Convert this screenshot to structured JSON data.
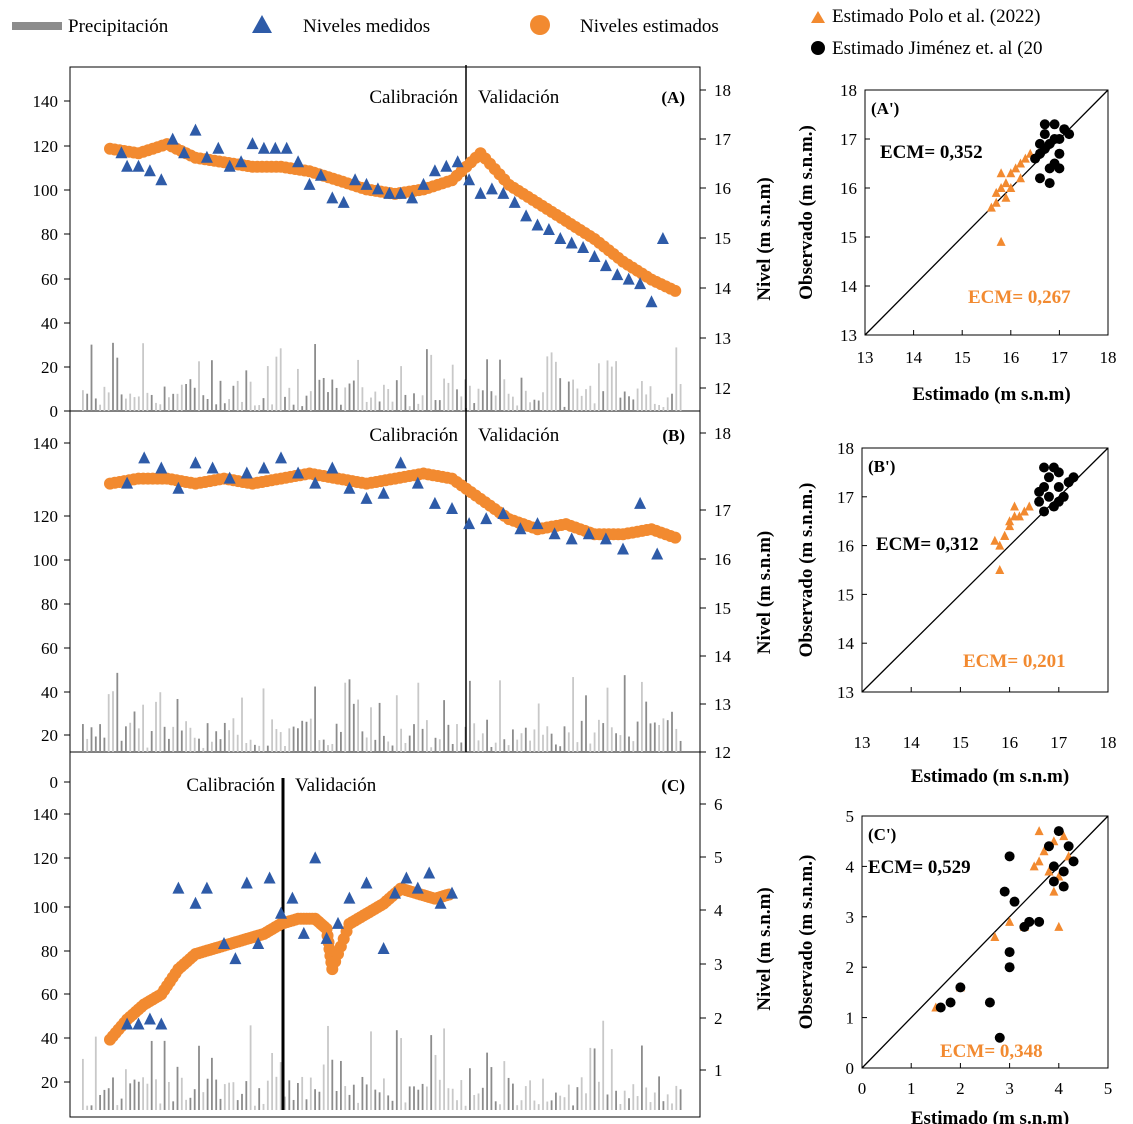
{
  "legend": {
    "items": [
      {
        "label": "Precipitación",
        "symbol": "bar",
        "color": "#8c8c8c"
      },
      {
        "label": "Niveles medidos",
        "symbol": "triangle",
        "color": "#2e5ba8"
      },
      {
        "label": "Niveles estimados",
        "symbol": "circle",
        "color": "#f28a30"
      },
      {
        "label": "Estimado Polo et al. (2022)",
        "symbol": "triangle",
        "color": "#f28a30"
      },
      {
        "label": "Estimado Jiménez et. al (20",
        "symbol": "circle",
        "color": "#000000"
      }
    ]
  },
  "colors": {
    "measured": "#2e5ba8",
    "estimated": "#f28a30",
    "polo": "#f28a30",
    "jimenez": "#000000",
    "precip": "#8c8c8c",
    "precip_light": "#c8c8c8"
  },
  "annotations": {
    "calibration": "Calibración",
    "validation": "Validación"
  },
  "chart_data": [
    {
      "type": "scatter",
      "panel": "(A)",
      "left_axis_ticks": [
        "0",
        "20",
        "40",
        "60",
        "80",
        "100",
        "120",
        "140"
      ],
      "right_axis_ticks": [
        "12",
        "13",
        "14",
        "15",
        "16",
        "17",
        "18"
      ],
      "right_axis_label": "Nivel (m s.n.m)",
      "right_ylim": [
        11.7,
        18.3
      ],
      "left_ylim": [
        0,
        150
      ],
      "series": [
        {
          "name": "Niveles medidos",
          "x": [
            0.02,
            0.03,
            0.05,
            0.07,
            0.09,
            0.11,
            0.13,
            0.15,
            0.17,
            0.19,
            0.21,
            0.23,
            0.25,
            0.27,
            0.29,
            0.31,
            0.33,
            0.35,
            0.37,
            0.39,
            0.41,
            0.43,
            0.45,
            0.47,
            0.49,
            0.51,
            0.53,
            0.55,
            0.57,
            0.59,
            0.61,
            0.63,
            0.65,
            0.67,
            0.69,
            0.71,
            0.73,
            0.75,
            0.77,
            0.79,
            0.81,
            0.83,
            0.85,
            0.87,
            0.89,
            0.91,
            0.93,
            0.95,
            0.97
          ],
          "y": [
            16.9,
            16.6,
            16.6,
            16.5,
            16.3,
            17.2,
            16.9,
            17.4,
            16.8,
            17.0,
            16.6,
            16.7,
            17.1,
            17.0,
            17.0,
            17.0,
            16.7,
            16.2,
            16.4,
            15.9,
            15.8,
            16.3,
            16.2,
            16.1,
            16.0,
            16.0,
            15.9,
            16.2,
            16.5,
            16.6,
            16.7,
            16.3,
            16.0,
            16.1,
            16.0,
            15.8,
            15.5,
            15.3,
            15.2,
            15.0,
            14.9,
            14.8,
            14.6,
            14.4,
            14.2,
            14.1,
            14.0,
            13.6,
            15.0
          ]
        },
        {
          "name": "Niveles estimados",
          "x": [
            0.0,
            0.05,
            0.1,
            0.15,
            0.2,
            0.25,
            0.3,
            0.35,
            0.4,
            0.45,
            0.5,
            0.55,
            0.6,
            0.65,
            0.7,
            0.75,
            0.8,
            0.85,
            0.9,
            0.95,
            1.0
          ],
          "y": [
            17.0,
            16.9,
            17.1,
            16.8,
            16.7,
            16.6,
            16.6,
            16.5,
            16.3,
            16.1,
            16.0,
            16.1,
            16.3,
            16.9,
            16.2,
            15.8,
            15.4,
            15.0,
            14.5,
            14.1,
            13.8
          ]
        }
      ]
    },
    {
      "type": "scatter",
      "panel": "(B)",
      "left_axis_ticks": [
        "20",
        "40",
        "60",
        "80",
        "100",
        "120",
        "140"
      ],
      "right_axis_ticks": [
        "12",
        "13",
        "14",
        "15",
        "16",
        "17",
        "18"
      ],
      "right_axis_label": "Nivel (m s.n.m)",
      "right_ylim": [
        12,
        18.3
      ],
      "left_ylim": [
        13,
        150
      ],
      "series": [
        {
          "name": "Niveles medidos",
          "x": [
            0.03,
            0.06,
            0.09,
            0.12,
            0.15,
            0.18,
            0.21,
            0.24,
            0.27,
            0.3,
            0.33,
            0.36,
            0.39,
            0.42,
            0.45,
            0.48,
            0.51,
            0.54,
            0.57,
            0.6,
            0.63,
            0.66,
            0.69,
            0.72,
            0.75,
            0.78,
            0.81,
            0.84,
            0.87,
            0.9,
            0.93,
            0.96
          ],
          "y": [
            17.3,
            17.8,
            17.6,
            17.2,
            17.7,
            17.6,
            17.4,
            17.5,
            17.6,
            17.8,
            17.5,
            17.3,
            17.6,
            17.2,
            17.0,
            17.1,
            17.7,
            17.3,
            16.9,
            16.8,
            16.5,
            16.6,
            16.7,
            16.4,
            16.5,
            16.3,
            16.2,
            16.3,
            16.2,
            16.0,
            16.9,
            15.9
          ]
        },
        {
          "name": "Niveles estimados",
          "x": [
            0.0,
            0.05,
            0.1,
            0.15,
            0.2,
            0.25,
            0.3,
            0.35,
            0.4,
            0.45,
            0.5,
            0.55,
            0.6,
            0.65,
            0.7,
            0.75,
            0.8,
            0.85,
            0.9,
            0.95,
            1.0
          ],
          "y": [
            17.3,
            17.4,
            17.4,
            17.3,
            17.4,
            17.3,
            17.4,
            17.5,
            17.4,
            17.3,
            17.4,
            17.5,
            17.4,
            17.0,
            16.6,
            16.4,
            16.5,
            16.3,
            16.3,
            16.4,
            16.2
          ]
        }
      ]
    },
    {
      "type": "scatter",
      "panel": "(C)",
      "left_axis_ticks": [
        "20",
        "40",
        "60",
        "80",
        "100",
        "120",
        "140",
        "0"
      ],
      "right_axis_ticks": [
        "1",
        "2",
        "3",
        "4",
        "5",
        "6"
      ],
      "right_axis_label": "Nivel (m s.n.m)",
      "right_ylim": [
        0.5,
        6.3
      ],
      "left_ylim": [
        13,
        153
      ],
      "series": [
        {
          "name": "Niveles medidos",
          "x": [
            0.03,
            0.05,
            0.07,
            0.09,
            0.12,
            0.15,
            0.17,
            0.2,
            0.22,
            0.24,
            0.26,
            0.28,
            0.3,
            0.32,
            0.34,
            0.36,
            0.38,
            0.4,
            0.42,
            0.45,
            0.48,
            0.5,
            0.52,
            0.54,
            0.56,
            0.58,
            0.6
          ],
          "y": [
            1.9,
            1.9,
            2.0,
            1.9,
            4.6,
            4.3,
            4.6,
            3.5,
            3.2,
            4.7,
            3.5,
            4.8,
            4.1,
            4.4,
            3.7,
            5.2,
            3.6,
            3.9,
            4.4,
            4.7,
            3.4,
            4.5,
            4.8,
            4.6,
            4.9,
            4.3,
            4.5
          ]
        },
        {
          "name": "Niveles estimados",
          "x": [
            0.0,
            0.03,
            0.06,
            0.09,
            0.12,
            0.15,
            0.18,
            0.21,
            0.24,
            0.27,
            0.3,
            0.33,
            0.36,
            0.38,
            0.39,
            0.42,
            0.45,
            0.48,
            0.51,
            0.54,
            0.57,
            0.6
          ],
          "y": [
            1.6,
            2.0,
            2.3,
            2.5,
            3.0,
            3.3,
            3.4,
            3.5,
            3.6,
            3.7,
            3.9,
            4.0,
            4.0,
            3.8,
            3.0,
            3.9,
            4.1,
            4.3,
            4.6,
            4.5,
            4.4,
            4.5
          ]
        }
      ]
    },
    {
      "type": "scatter",
      "panel": "(A')",
      "xlabel": "Estimado (m s.n.m)",
      "ylabel": "Observado  (m s.n.m.)",
      "xlim": [
        13,
        18
      ],
      "ylim": [
        13,
        18
      ],
      "xticks": [
        "13",
        "14",
        "15",
        "16",
        "17",
        "18"
      ],
      "yticks": [
        "13",
        "14",
        "15",
        "16",
        "17",
        "18"
      ],
      "ecm_black": "ECM= 0,352",
      "ecm_orange": "ECM= 0,267",
      "series": [
        {
          "name": "Estimado Polo et al. (2022)",
          "x": [
            15.6,
            15.7,
            15.8,
            15.9,
            16.0,
            16.1,
            16.2,
            16.3,
            15.7,
            15.8,
            16.0,
            16.2,
            16.4,
            15.9,
            15.8
          ],
          "y": [
            15.6,
            15.9,
            16.0,
            16.1,
            16.3,
            16.4,
            16.5,
            16.6,
            15.7,
            14.9,
            16.0,
            16.2,
            16.7,
            15.8,
            16.3
          ]
        },
        {
          "name": "Estimado Jiménez et. al (20",
          "x": [
            16.5,
            16.6,
            16.7,
            16.8,
            16.9,
            17.0,
            17.1,
            16.6,
            16.8,
            16.9,
            17.0,
            16.7,
            16.9,
            17.2,
            16.8,
            16.6,
            17.0,
            16.7
          ],
          "y": [
            16.6,
            16.9,
            17.1,
            16.4,
            17.0,
            16.7,
            17.2,
            16.2,
            16.9,
            16.5,
            17.0,
            16.8,
            17.3,
            17.1,
            16.1,
            16.7,
            16.4,
            17.3
          ]
        }
      ]
    },
    {
      "type": "scatter",
      "panel": "(B')",
      "xlabel": "Estimado (m s.n.m)",
      "ylabel": "Observado  (m s.n.m.)",
      "xlim": [
        13,
        18
      ],
      "ylim": [
        13,
        18
      ],
      "xticks": [
        "13",
        "14",
        "15",
        "16",
        "17",
        "18"
      ],
      "yticks": [
        "13",
        "14",
        "15",
        "16",
        "17",
        "18"
      ],
      "ecm_black": "ECM= 0,312",
      "ecm_orange": "ECM= 0,201",
      "series": [
        {
          "name": "Estimado Polo et al. (2022)",
          "x": [
            15.8,
            15.9,
            16.0,
            16.1,
            16.2,
            16.3,
            16.4,
            15.8,
            15.9,
            16.0,
            16.1,
            15.7
          ],
          "y": [
            15.5,
            16.2,
            16.4,
            16.6,
            16.6,
            16.7,
            16.8,
            16.0,
            16.2,
            16.5,
            16.8,
            16.1
          ]
        },
        {
          "name": "Estimado Jiménez et. al (20",
          "x": [
            16.6,
            16.7,
            16.8,
            16.9,
            17.0,
            17.1,
            17.2,
            16.7,
            16.9,
            17.0,
            16.8,
            17.3,
            16.6,
            17.0,
            16.7
          ],
          "y": [
            16.9,
            17.2,
            17.4,
            16.8,
            17.5,
            17.0,
            17.3,
            16.7,
            17.6,
            17.2,
            17.0,
            17.4,
            17.1,
            16.9,
            17.6
          ]
        }
      ]
    },
    {
      "type": "scatter",
      "panel": "(C')",
      "xlabel": "Estimado (m s.n.m)",
      "ylabel": "Observado  (m s.n.m.)",
      "xlim": [
        0,
        5
      ],
      "ylim": [
        0,
        5
      ],
      "xticks": [
        "0",
        "1",
        "2",
        "3",
        "4",
        "5"
      ],
      "yticks": [
        "0",
        "1",
        "2",
        "3",
        "4",
        "5"
      ],
      "ecm_black": "ECM= 0,529",
      "ecm_orange": "ECM= 0,348",
      "series": [
        {
          "name": "Estimado Polo et al. (2022)",
          "x": [
            1.5,
            2.0,
            2.7,
            3.0,
            3.3,
            3.5,
            3.6,
            3.7,
            3.8,
            3.9,
            4.0,
            4.1,
            4.2,
            3.6,
            3.9,
            4.0,
            3.8
          ],
          "y": [
            1.2,
            1.6,
            2.6,
            2.9,
            2.8,
            4.0,
            4.7,
            4.3,
            3.9,
            4.5,
            3.8,
            4.6,
            4.2,
            4.1,
            3.5,
            2.8,
            3.9
          ]
        },
        {
          "name": "Estimado Jiménez et. al (20",
          "x": [
            1.6,
            1.8,
            2.0,
            2.6,
            2.8,
            3.0,
            3.0,
            3.1,
            3.3,
            3.4,
            3.6,
            3.8,
            3.9,
            4.0,
            4.1,
            4.2,
            4.3,
            3.9,
            4.1,
            2.9,
            3.0
          ],
          "y": [
            1.2,
            1.3,
            1.6,
            1.3,
            0.6,
            2.0,
            2.3,
            3.3,
            2.8,
            2.9,
            2.9,
            4.4,
            4.0,
            4.7,
            3.9,
            4.4,
            4.1,
            3.7,
            3.6,
            3.5,
            4.2
          ]
        }
      ]
    }
  ]
}
